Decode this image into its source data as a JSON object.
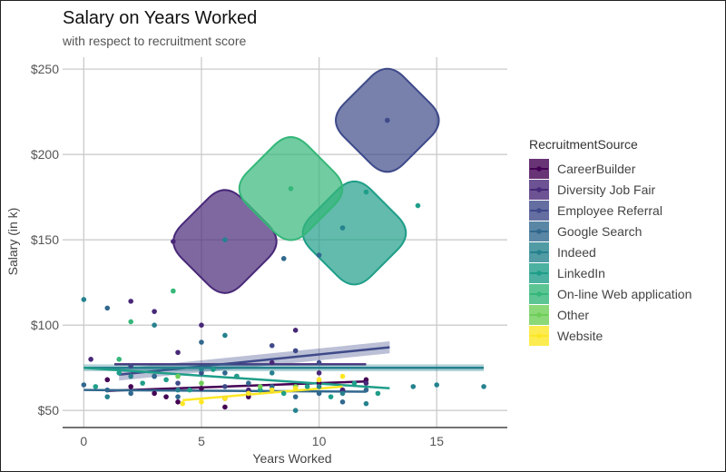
{
  "chart_data": {
    "type": "scatter",
    "title": "Salary on Years Worked",
    "subtitle": "with respect to recruitment score",
    "xlabel": "Years Worked",
    "ylabel": "Salary (in k)",
    "xlim": [
      -0.9,
      18
    ],
    "ylim": [
      40,
      257
    ],
    "xticks": [
      0,
      5,
      10,
      15
    ],
    "xtick_labels": [
      "0",
      "5",
      "10",
      "15"
    ],
    "yticks": [
      50,
      100,
      150,
      200,
      250
    ],
    "ytick_labels": [
      "$50",
      "$100",
      "$150",
      "$200",
      "$250"
    ],
    "grid": true,
    "legend_position": "right",
    "legend_title": "RecruitmentSource",
    "series": [
      {
        "name": "CareerBuilder",
        "color": "#440154",
        "points": [
          [
            1,
            68
          ],
          [
            2,
            64
          ],
          [
            3,
            60
          ],
          [
            3.5,
            58
          ],
          [
            4,
            55
          ],
          [
            5,
            63
          ],
          [
            6,
            52
          ],
          [
            7,
            58
          ],
          [
            8,
            62
          ],
          [
            9,
            64
          ],
          [
            10,
            66
          ],
          [
            11,
            62
          ],
          [
            12,
            68
          ],
          [
            6.5,
            70
          ]
        ],
        "trend": [
          [
            1,
            61.5
          ],
          [
            12,
            67
          ]
        ]
      },
      {
        "name": "Diversity Job Fair",
        "color": "#482878",
        "points": [
          [
            0.3,
            80
          ],
          [
            2,
            114
          ],
          [
            3,
            108
          ],
          [
            4,
            84
          ],
          [
            5,
            100
          ],
          [
            6,
            57
          ],
          [
            7,
            62
          ],
          [
            8,
            78
          ],
          [
            9,
            97
          ],
          [
            10,
            72
          ],
          [
            11,
            62
          ],
          [
            12,
            66
          ],
          [
            3.8,
            149
          ]
        ],
        "trend": [
          [
            1.3,
            77
          ],
          [
            12,
            77
          ]
        ],
        "bubble_center": [
          6,
          149
        ]
      },
      {
        "name": "Employee Referral",
        "color": "#3E4A89",
        "points": [
          [
            2,
            76
          ],
          [
            3,
            70
          ],
          [
            4,
            66
          ],
          [
            5,
            72
          ],
          [
            6,
            64
          ],
          [
            7,
            60
          ],
          [
            8,
            88
          ],
          [
            9,
            85
          ],
          [
            10,
            78
          ],
          [
            12.9,
            220
          ]
        ],
        "trend": [
          [
            1.5,
            71
          ],
          [
            13,
            87
          ]
        ],
        "band": 3.5,
        "bubble_center": [
          12.9,
          220
        ]
      },
      {
        "name": "Google Search",
        "color": "#31688E",
        "points": [
          [
            0,
            65
          ],
          [
            1,
            110
          ],
          [
            1,
            62
          ],
          [
            2,
            60
          ],
          [
            3,
            70
          ],
          [
            4,
            58
          ],
          [
            5,
            90
          ],
          [
            6,
            72
          ],
          [
            7,
            66
          ],
          [
            8,
            64
          ],
          [
            9,
            58
          ],
          [
            10,
            60
          ],
          [
            11,
            55
          ],
          [
            12,
            62
          ],
          [
            8.5,
            139
          ],
          [
            10,
            141
          ]
        ],
        "trend": [
          [
            0,
            62
          ],
          [
            12,
            61
          ]
        ]
      },
      {
        "name": "Indeed",
        "color": "#26828E",
        "points": [
          [
            0,
            115
          ],
          [
            1,
            58
          ],
          [
            2,
            70
          ],
          [
            3,
            100
          ],
          [
            4,
            62
          ],
          [
            5,
            74
          ],
          [
            6,
            94
          ],
          [
            7,
            60
          ],
          [
            8,
            72
          ],
          [
            9,
            50
          ],
          [
            10,
            64
          ],
          [
            11,
            60
          ],
          [
            12,
            54
          ],
          [
            14,
            64
          ],
          [
            15,
            65
          ],
          [
            17,
            64
          ],
          [
            6,
            150
          ],
          [
            11,
            157
          ]
        ],
        "trend": [
          [
            0,
            75
          ],
          [
            17,
            75
          ]
        ],
        "band": 2
      },
      {
        "name": "LinkedIn",
        "color": "#1F9E89",
        "points": [
          [
            0.5,
            64
          ],
          [
            1.5,
            72
          ],
          [
            2.5,
            66
          ],
          [
            3.5,
            68
          ],
          [
            4.5,
            62
          ],
          [
            5.5,
            74
          ],
          [
            6.5,
            70
          ],
          [
            7.5,
            62
          ],
          [
            8.5,
            60
          ],
          [
            9.5,
            64
          ],
          [
            10.5,
            58
          ],
          [
            11.5,
            66
          ],
          [
            12.5,
            60
          ],
          [
            12,
            178
          ],
          [
            14.2,
            170
          ]
        ],
        "trend": [
          [
            0,
            75
          ],
          [
            13,
            63
          ]
        ],
        "bubble_center": [
          11.5,
          154
        ]
      },
      {
        "name": "On-line Web application",
        "color": "#35B779",
        "points": [
          [
            3.8,
            120
          ],
          [
            1.5,
            80
          ],
          [
            2,
            102
          ],
          [
            8.8,
            180
          ]
        ],
        "bubble_center": [
          8.8,
          180
        ]
      },
      {
        "name": "Other",
        "color": "#6ECE58",
        "points": [
          [
            4,
            70
          ],
          [
            5,
            66
          ],
          [
            7.5,
            64
          ],
          [
            9,
            64
          ],
          [
            10,
            68
          ]
        ]
      },
      {
        "name": "Website",
        "color": "#FDE725",
        "points": [
          [
            4.2,
            54
          ],
          [
            5,
            55
          ],
          [
            6,
            57
          ],
          [
            7,
            60
          ],
          [
            8,
            62
          ],
          [
            9,
            63
          ],
          [
            10,
            68
          ],
          [
            11,
            70
          ]
        ],
        "trend": [
          [
            4.2,
            56
          ],
          [
            11,
            64
          ]
        ]
      }
    ]
  }
}
